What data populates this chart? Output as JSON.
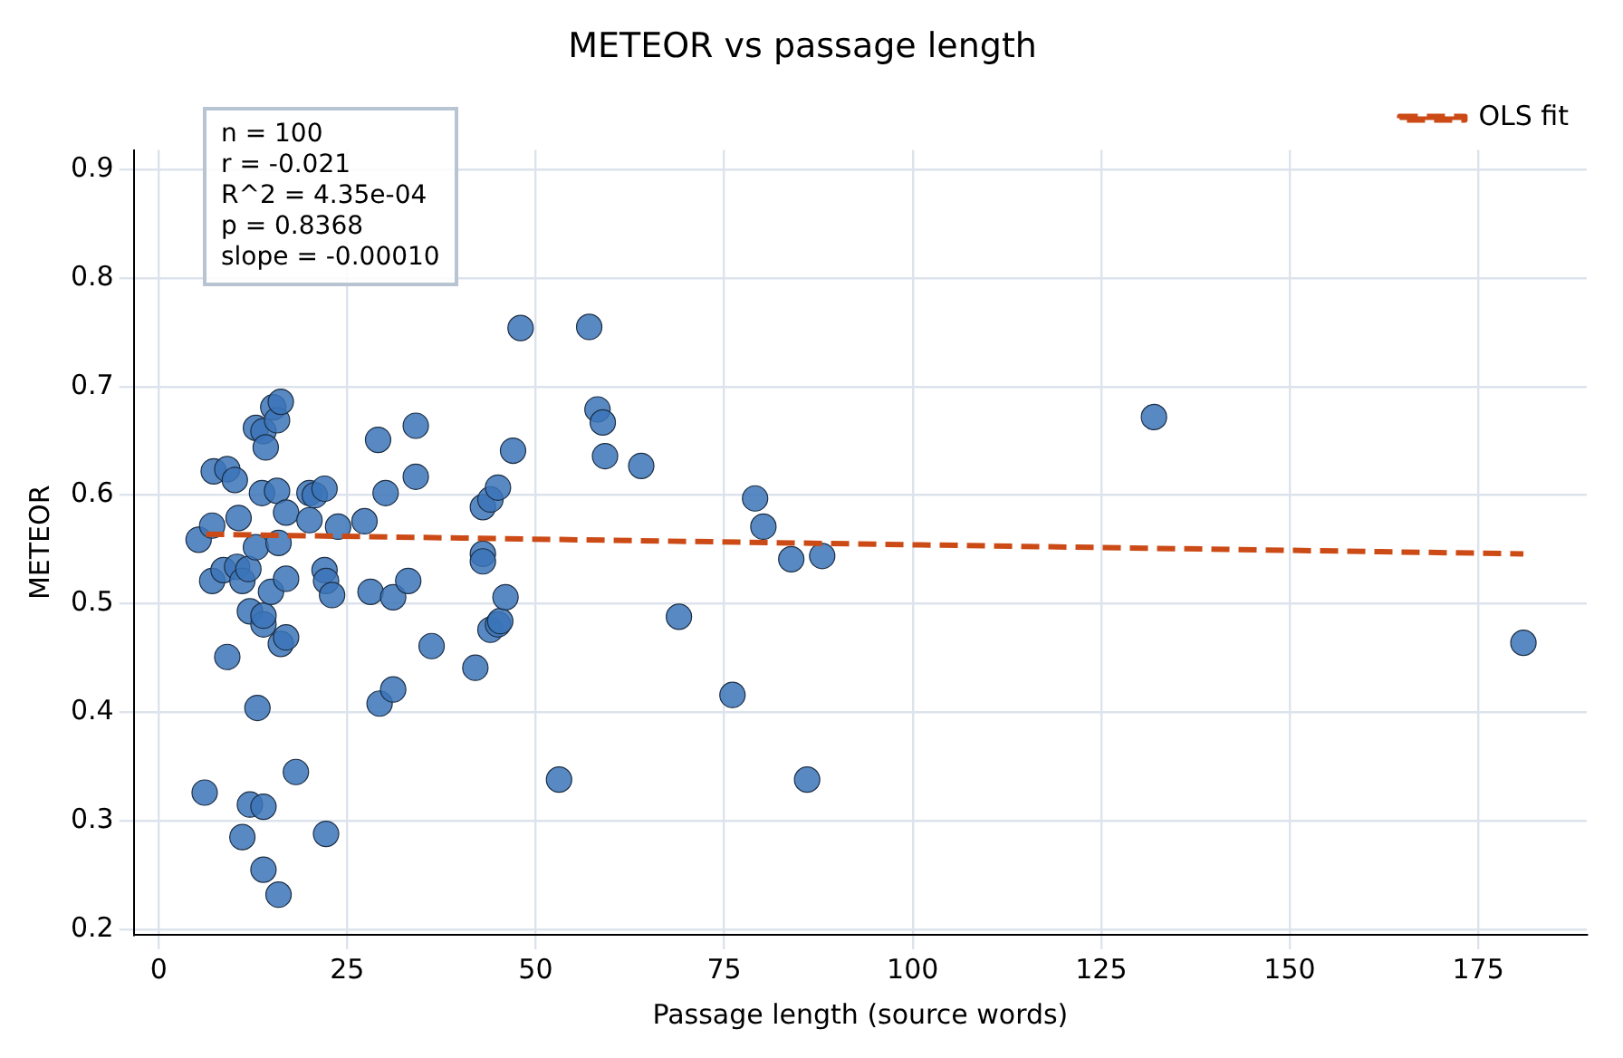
{
  "chart_data": {
    "type": "scatter",
    "title": "METEOR vs passage length",
    "xlabel": "Passage length (source words)",
    "ylabel": "METEOR",
    "xlim": [
      -3.3,
      189.4
    ],
    "xticks": [
      0,
      25,
      50,
      75,
      100,
      125,
      150,
      175
    ],
    "ylim": [
      0.195,
      0.918
    ],
    "yticks": [
      0.2,
      0.3,
      0.4,
      0.5,
      0.6,
      0.7,
      0.8,
      0.9
    ],
    "grid": true,
    "legend": "top right",
    "marker": "circle",
    "annotations": [
      "n = 100",
      "r = -0.021",
      "R^2 = 4.35e-04",
      "p = 0.8368",
      "slope = -0.00010"
    ],
    "series": [
      {
        "type": "scatter",
        "color": "#3b74b8",
        "x": [
          5.3,
          6.1,
          7.1,
          7.3,
          7.1,
          8.6,
          9.1,
          9.1,
          10.1,
          10.4,
          10.6,
          11.1,
          11.1,
          11.9,
          12.1,
          12.1,
          12.9,
          12.9,
          13.1,
          13.7,
          13.9,
          13.9,
          13.9,
          13.9,
          13.9,
          14.2,
          15.2,
          14.9,
          15.7,
          15.9,
          15.7,
          15.9,
          16.2,
          16.2,
          16.9,
          16.9,
          16.9,
          18.2,
          20.0,
          20.0,
          20.7,
          22.0,
          22.0,
          22.2,
          22.2,
          23.0,
          23.8,
          27.3,
          28.1,
          29.1,
          29.3,
          30.1,
          31.1,
          31.1,
          33.1,
          34.1,
          34.1,
          36.2,
          42.0,
          43.0,
          43.0,
          43.0,
          44.0,
          44.0,
          45.0,
          45.0,
          45.3,
          46.0,
          47.0,
          48.0,
          53.1,
          57.1,
          58.2,
          58.9,
          59.2,
          64.0,
          69.0,
          76.1,
          79.1,
          80.2,
          83.9,
          86.0,
          88.0,
          132,
          181
        ],
        "values": [
          0.559,
          0.326,
          0.572,
          0.622,
          0.521,
          0.531,
          0.624,
          0.451,
          0.614,
          0.534,
          0.579,
          0.521,
          0.285,
          0.532,
          0.493,
          0.315,
          0.552,
          0.662,
          0.404,
          0.602,
          0.481,
          0.489,
          0.313,
          0.255,
          0.659,
          0.644,
          0.681,
          0.511,
          0.604,
          0.232,
          0.669,
          0.556,
          0.463,
          0.686,
          0.523,
          0.469,
          0.584,
          0.345,
          0.602,
          0.577,
          0.6,
          0.606,
          0.531,
          0.521,
          0.288,
          0.508,
          0.571,
          0.576,
          0.511,
          0.651,
          0.408,
          0.602,
          0.421,
          0.506,
          0.521,
          0.664,
          0.617,
          0.461,
          0.441,
          0.589,
          0.546,
          0.539,
          0.596,
          0.476,
          0.607,
          0.481,
          0.484,
          0.506,
          0.641,
          0.754,
          0.338,
          0.755,
          0.679,
          0.667,
          0.636,
          0.627,
          0.488,
          0.416,
          0.597,
          0.571,
          0.541,
          0.338,
          0.544,
          0.672,
          0.464
        ]
      },
      {
        "type": "line",
        "name": "OLS fit",
        "color": "#cc4a16",
        "line_style": "dashed",
        "marker": "none",
        "x": [
          6.3,
          181
        ],
        "values": [
          0.564,
          0.546
        ]
      }
    ]
  }
}
